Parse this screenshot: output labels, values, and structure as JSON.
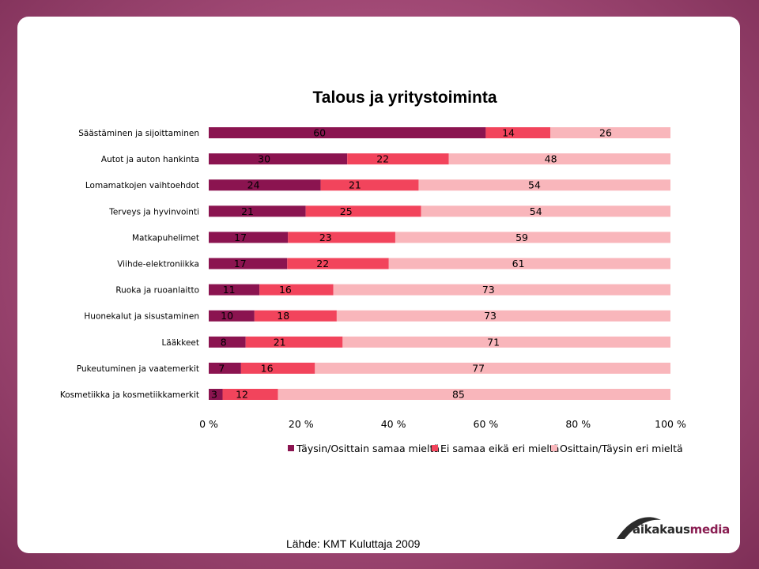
{
  "source_text": "Lähde: KMT Kuluttaja 2009",
  "logo": {
    "part1": "aikakaus",
    "part2": "media"
  },
  "colors": {
    "series1": "#8b1450",
    "series2": "#f2445c",
    "series3": "#f9b6bb",
    "background": "#a24a76"
  },
  "chart_data": {
    "type": "bar",
    "orientation": "horizontal",
    "stacked": "percent",
    "title": "Talous ja yritystoiminta",
    "categories": [
      "Säästäminen ja sijoittaminen",
      "Autot ja auton hankinta",
      "Lomamatkojen vaihtoehdot",
      "Terveys ja hyvinvointi",
      "Matkapuhelimet",
      "Viihde-elektroniikka",
      "Ruoka ja ruoanlaitto",
      "Huonekalut ja sisustaminen",
      "Lääkkeet",
      "Pukeutuminen ja vaatemerkit",
      "Kosmetiikka ja kosmetiikkamerkit"
    ],
    "series": [
      {
        "name": "Täysin/Osittain samaa mieltä",
        "values": [
          60,
          30,
          24,
          21,
          17,
          17,
          11,
          10,
          8,
          7,
          3
        ]
      },
      {
        "name": "Ei samaa eikä eri mieltä",
        "values": [
          14,
          22,
          21,
          25,
          23,
          22,
          16,
          18,
          21,
          16,
          12
        ]
      },
      {
        "name": "Osittain/Täysin eri mieltä",
        "values": [
          26,
          48,
          54,
          54,
          59,
          61,
          73,
          73,
          71,
          77,
          85
        ]
      }
    ],
    "xlim": [
      0,
      100
    ],
    "xticks": [
      "0 %",
      "20 %",
      "40 %",
      "60 %",
      "80 %",
      "100 %"
    ],
    "legend_position": "bottom",
    "grid": false
  }
}
